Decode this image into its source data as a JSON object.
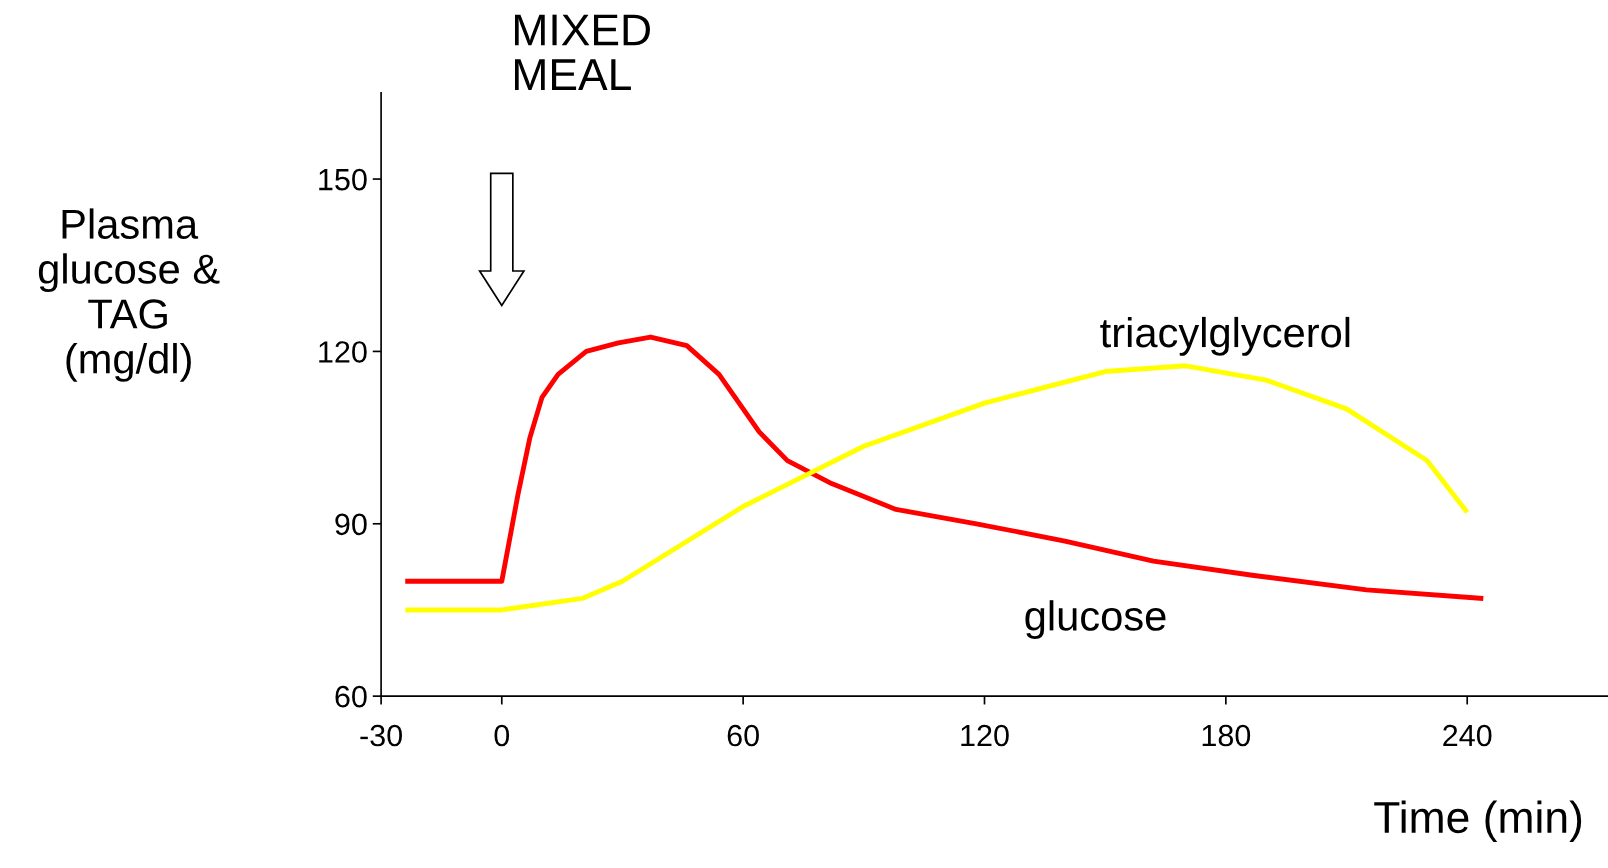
{
  "chart_data": {
    "type": "line",
    "xlabel": "Time (min)",
    "ylabel": "Plasma\nglucose &\nTAG\n(mg/dl)",
    "xlim": [
      -30,
      275
    ],
    "ylim": [
      60,
      165
    ],
    "xticks": [
      -30,
      0,
      60,
      120,
      180,
      240
    ],
    "yticks": [
      60,
      90,
      120,
      150
    ],
    "grid": false,
    "marker": "none",
    "line_style": "solid",
    "annotations": [
      "MIXED\nMEAL"
    ],
    "series": [
      {
        "name": "glucose",
        "color": "#ff0000",
        "x": [
          -24,
          0,
          0,
          4,
          7,
          10,
          14,
          21,
          29,
          37,
          46,
          54,
          64,
          71,
          82,
          98,
          118,
          140,
          162,
          187,
          215,
          244
        ],
        "values": [
          80,
          80,
          80,
          95,
          105,
          112,
          116,
          120,
          121.5,
          122.5,
          121,
          116,
          106,
          101,
          97,
          92.5,
          90,
          87,
          83.5,
          81,
          78.5,
          77
        ]
      },
      {
        "name": "triacylglycerol",
        "color": "#ffff00",
        "x": [
          -24,
          0,
          20,
          30,
          60,
          90,
          120,
          150,
          170,
          190,
          210,
          230,
          240
        ],
        "values": [
          75,
          75,
          77,
          80,
          93,
          103.5,
          111,
          116.5,
          117.5,
          115,
          110,
          101,
          92
        ]
      }
    ]
  }
}
